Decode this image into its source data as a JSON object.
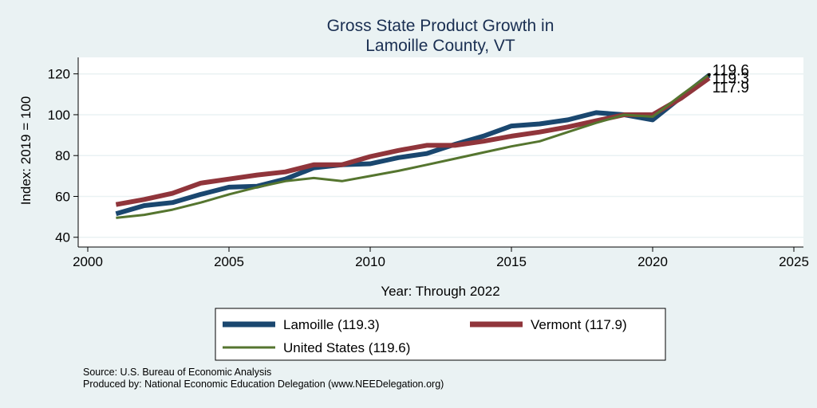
{
  "chart_data": {
    "type": "line",
    "title_line1": "Gross State Product Growth in",
    "title_line2": "Lamoille County, VT",
    "xlabel": "Year: Through 2022",
    "ylabel": "Index: 2019 = 100",
    "xlim": [
      2000,
      2025
    ],
    "ylim": [
      36,
      123
    ],
    "xticks": [
      2000,
      2005,
      2010,
      2015,
      2020,
      2025
    ],
    "yticks": [
      40,
      60,
      80,
      100,
      120
    ],
    "grid": "horizontal",
    "legend_position": "bottom",
    "x": [
      2001,
      2002,
      2003,
      2004,
      2005,
      2006,
      2007,
      2008,
      2009,
      2010,
      2011,
      2012,
      2013,
      2014,
      2015,
      2016,
      2017,
      2018,
      2019,
      2020,
      2021,
      2022
    ],
    "series": [
      {
        "name": "Lamoille",
        "legend_label": "Lamoille  (119.3)",
        "color": "#1a476f",
        "values": [
          51.5,
          55.5,
          57,
          61,
          64.5,
          65,
          68.5,
          74,
          75.5,
          76,
          79,
          81,
          85.5,
          89.5,
          94.5,
          95.5,
          97.5,
          101,
          100,
          97.5,
          108.5,
          119.3
        ]
      },
      {
        "name": "Vermont",
        "legend_label": "Vermont (117.9)",
        "color": "#90353b",
        "values": [
          56,
          58.5,
          61.5,
          66.5,
          68.5,
          70.5,
          72,
          75.5,
          75.5,
          79.5,
          82.5,
          85,
          85,
          87,
          89.5,
          91.5,
          94,
          97,
          100,
          100,
          108,
          117.9
        ]
      },
      {
        "name": "United States",
        "legend_label": "United States (119.6)",
        "color": "#55752f",
        "values": [
          49.5,
          51,
          53.5,
          57,
          61,
          64.5,
          67.5,
          69,
          67.5,
          70,
          72.5,
          75.5,
          78.5,
          81.5,
          84.5,
          87,
          91.5,
          96,
          100,
          99,
          109.5,
          119.6
        ]
      }
    ],
    "end_labels": [
      "119.6",
      "119.3",
      "117.9"
    ]
  },
  "footer": {
    "source": "Source: U.S. Bureau of Economic Analysis",
    "produced": "Produced by: National Economic Education Delegation (www.NEEDelegation.org)"
  }
}
